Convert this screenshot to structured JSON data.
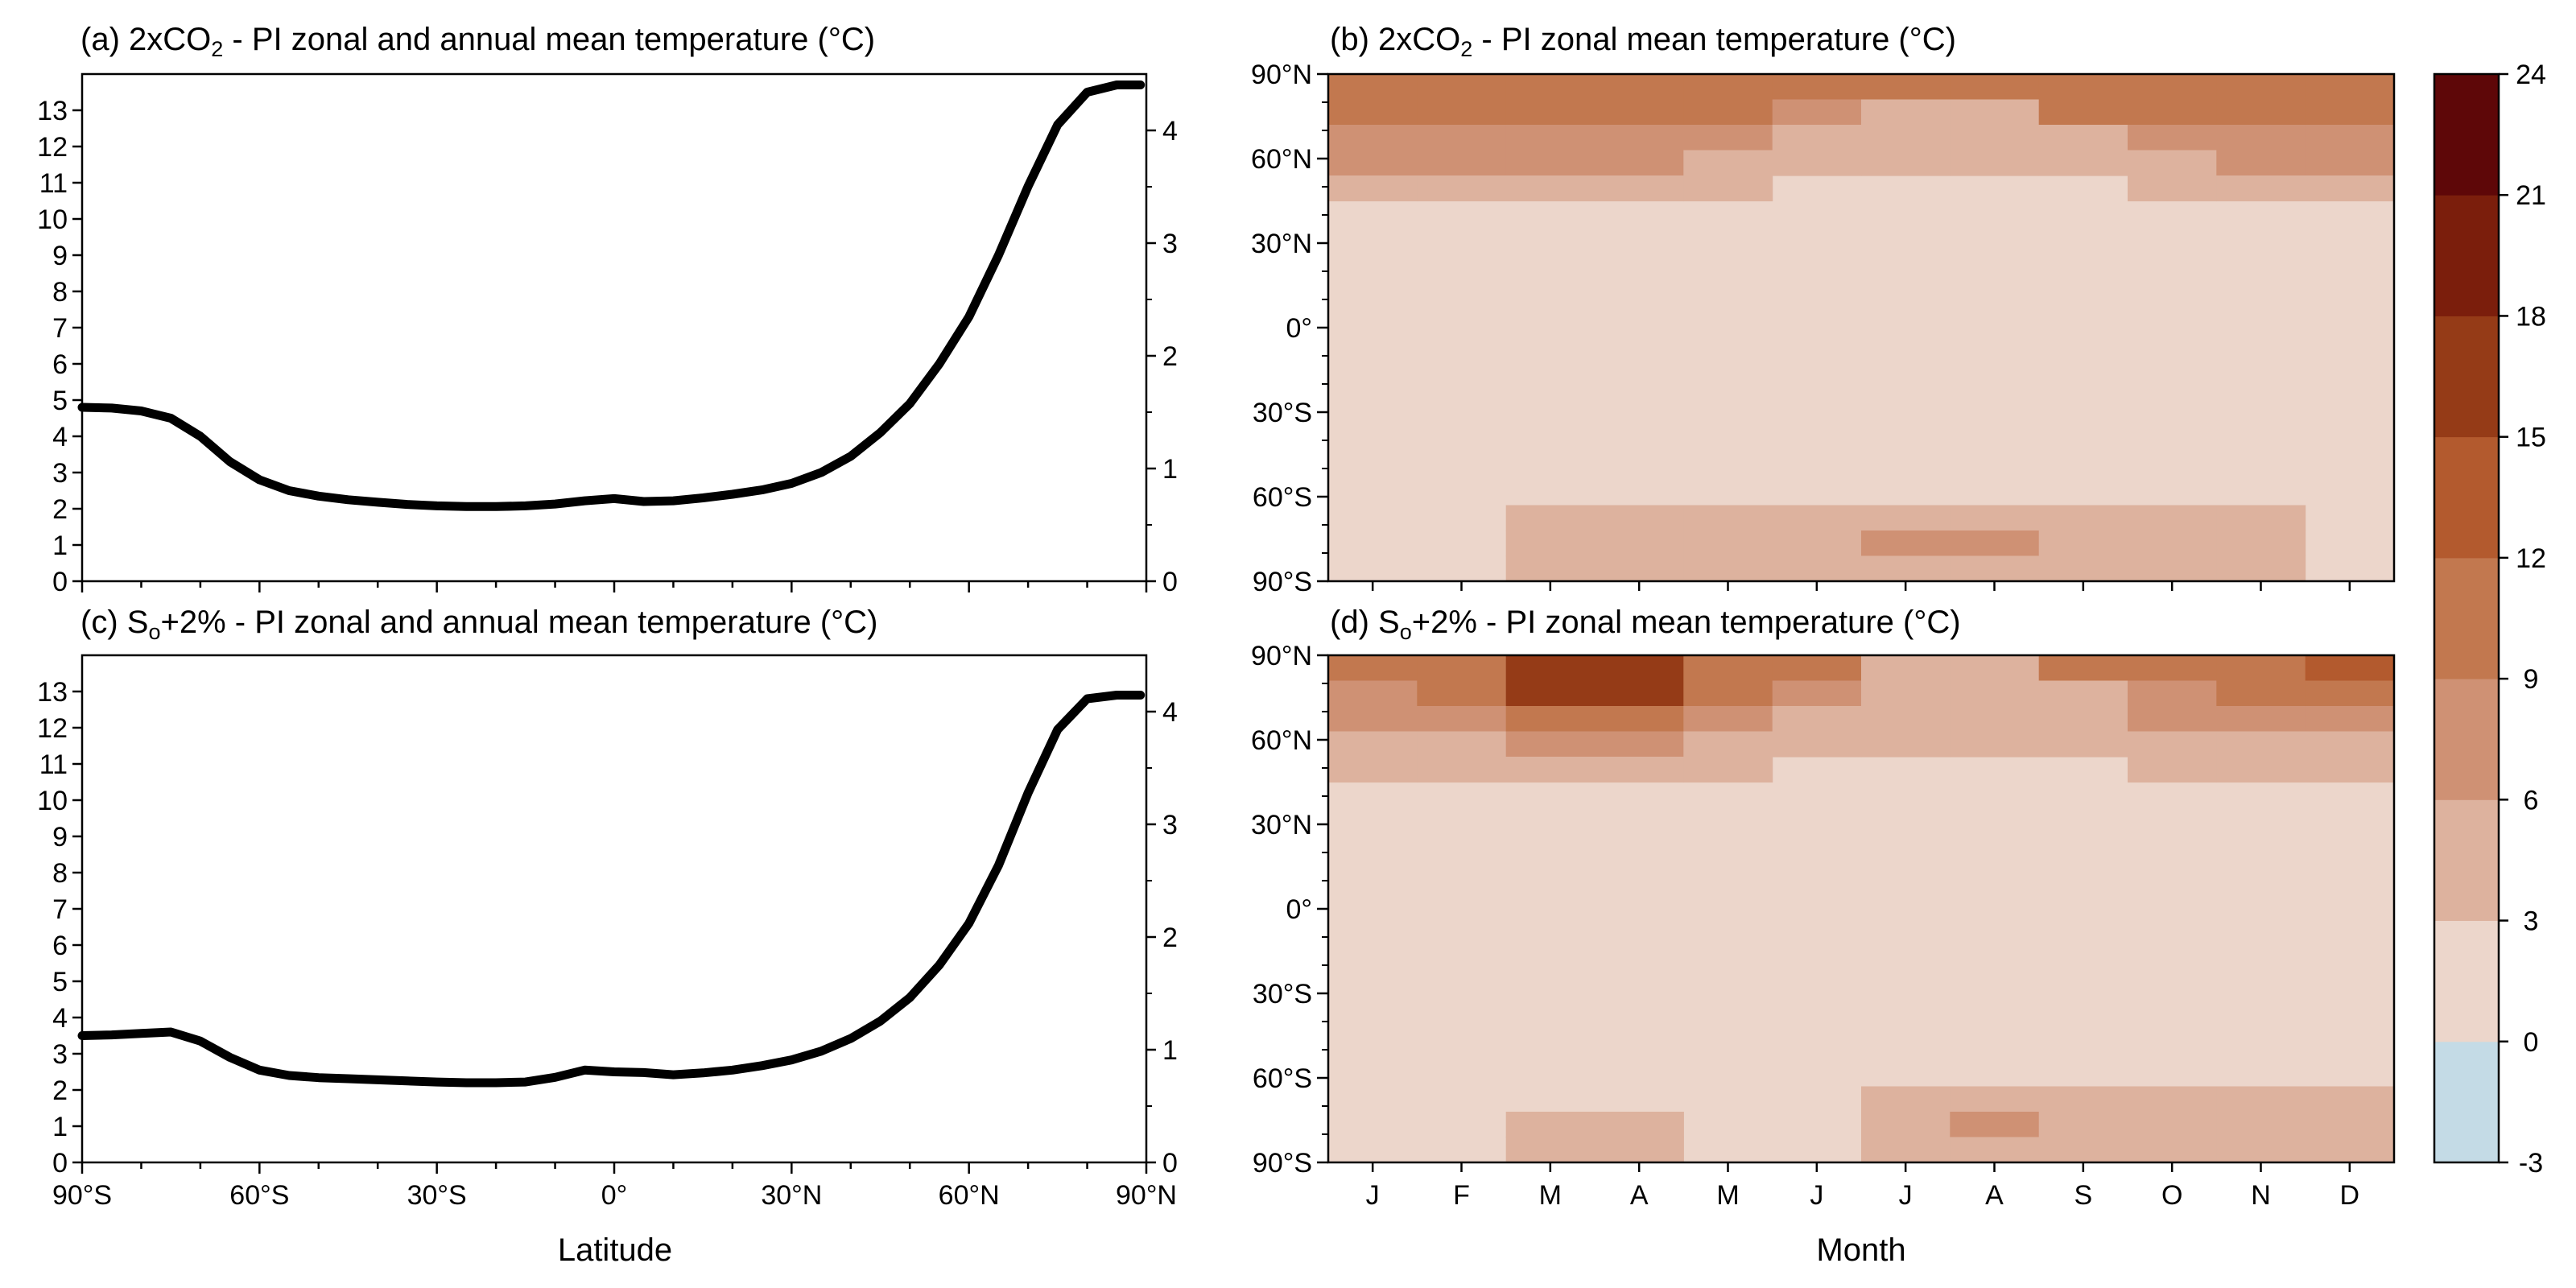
{
  "chart_data": [
    {
      "panel": "a",
      "type": "line",
      "title_prefix": "(a) 2xCO",
      "title_sub": "2",
      "title_suffix": " - PI zonal and annual mean temperature (°C)",
      "xlabel": "",
      "xlim": [
        -90,
        90
      ],
      "ylim_left": [
        0,
        14
      ],
      "ylim_right": [
        0,
        4.5
      ],
      "yticks_left": [
        "0",
        "1",
        "2",
        "3",
        "4",
        "5",
        "6",
        "7",
        "8",
        "9",
        "10",
        "11",
        "12",
        "13"
      ],
      "yticks_right": [
        "0",
        "1",
        "2",
        "3",
        "4"
      ],
      "x": [
        -90,
        -85,
        -80,
        -75,
        -70,
        -65,
        -60,
        -55,
        -50,
        -45,
        -40,
        -35,
        -30,
        -25,
        -20,
        -15,
        -10,
        -5,
        0,
        5,
        10,
        15,
        20,
        25,
        30,
        35,
        40,
        45,
        50,
        55,
        60,
        65,
        70,
        75,
        80,
        85,
        89
      ],
      "y": [
        4.8,
        4.78,
        4.7,
        4.5,
        4.0,
        3.3,
        2.8,
        2.5,
        2.35,
        2.25,
        2.18,
        2.12,
        2.08,
        2.06,
        2.06,
        2.08,
        2.13,
        2.22,
        2.28,
        2.2,
        2.22,
        2.3,
        2.4,
        2.52,
        2.7,
        3.0,
        3.45,
        4.1,
        4.9,
        6.0,
        7.3,
        9.0,
        10.9,
        12.6,
        13.5,
        13.7,
        13.7
      ]
    },
    {
      "panel": "b",
      "type": "heatmap",
      "title_prefix": "(b) 2xCO",
      "title_sub": "2",
      "title_suffix": " - PI zonal mean temperature (°C)",
      "xlabel": "",
      "months": [
        "J",
        "F",
        "M",
        "A",
        "M",
        "J",
        "J",
        "A",
        "S",
        "O",
        "N",
        "D"
      ],
      "ylim": [
        -90,
        90
      ],
      "field": [
        [
          4,
          4,
          4,
          4,
          4,
          4,
          4,
          4,
          4,
          4,
          4,
          4
        ],
        [
          4,
          4,
          4,
          4,
          4,
          3,
          2,
          2,
          4,
          4,
          4,
          4
        ],
        [
          3,
          3,
          3,
          3,
          3,
          2,
          2,
          2,
          2,
          3,
          3,
          3
        ],
        [
          3,
          3,
          3,
          3,
          2,
          2,
          2,
          2,
          2,
          2,
          3,
          3
        ],
        [
          2,
          2,
          2,
          2,
          2,
          1,
          1,
          1,
          1,
          2,
          2,
          2
        ],
        [
          1,
          1,
          1,
          1,
          1,
          1,
          1,
          1,
          1,
          1,
          1,
          1
        ],
        [
          1,
          1,
          1,
          1,
          1,
          1,
          1,
          1,
          1,
          1,
          1,
          1
        ],
        [
          1,
          1,
          1,
          1,
          1,
          1,
          1,
          1,
          1,
          1,
          1,
          1
        ],
        [
          1,
          1,
          1,
          1,
          1,
          1,
          1,
          1,
          1,
          1,
          1,
          1
        ],
        [
          1,
          1,
          1,
          1,
          1,
          1,
          1,
          1,
          1,
          1,
          1,
          1
        ],
        [
          1,
          1,
          1,
          1,
          1,
          1,
          1,
          1,
          1,
          1,
          1,
          1
        ],
        [
          1,
          1,
          1,
          1,
          1,
          1,
          1,
          1,
          1,
          1,
          1,
          1
        ],
        [
          1,
          1,
          1,
          1,
          1,
          1,
          1,
          1,
          1,
          1,
          1,
          1
        ],
        [
          1,
          1,
          1,
          1,
          1,
          1,
          1,
          1,
          1,
          1,
          1,
          1
        ],
        [
          1,
          1,
          1,
          1,
          1,
          1,
          1,
          1,
          1,
          1,
          1,
          1
        ],
        [
          1,
          1,
          1,
          1,
          1,
          1,
          1,
          1,
          1,
          1,
          1,
          1
        ],
        [
          1,
          1,
          1,
          1,
          1,
          1,
          1,
          1,
          1,
          1,
          1,
          1
        ],
        [
          1,
          1,
          2,
          2,
          2,
          2,
          2,
          2,
          2,
          2,
          2,
          1
        ],
        [
          1,
          1,
          2,
          2,
          2,
          2,
          3,
          3,
          2,
          2,
          2,
          1
        ],
        [
          1,
          1,
          2,
          2,
          2,
          2,
          2,
          2,
          2,
          2,
          2,
          1
        ]
      ]
    },
    {
      "panel": "c",
      "type": "line",
      "title_prefix": "(c) S",
      "title_sub": "o",
      "title_suffix": "+2% - PI zonal and annual mean temperature (°C)",
      "xlabel": "Latitude",
      "xlim": [
        -90,
        90
      ],
      "xticks": [
        "90°S",
        "60°S",
        "30°S",
        "0°",
        "30°N",
        "60°N",
        "90°N"
      ],
      "ylim_left": [
        0,
        14
      ],
      "ylim_right": [
        0,
        4.5
      ],
      "yticks_left": [
        "0",
        "1",
        "2",
        "3",
        "4",
        "5",
        "6",
        "7",
        "8",
        "9",
        "10",
        "11",
        "12",
        "13"
      ],
      "yticks_right": [
        "0",
        "1",
        "2",
        "3",
        "4"
      ],
      "x": [
        -90,
        -85,
        -80,
        -75,
        -70,
        -65,
        -60,
        -55,
        -50,
        -45,
        -40,
        -35,
        -30,
        -25,
        -20,
        -15,
        -10,
        -5,
        0,
        5,
        10,
        15,
        20,
        25,
        30,
        35,
        40,
        45,
        50,
        55,
        60,
        65,
        70,
        75,
        80,
        85,
        89
      ],
      "y": [
        3.5,
        3.52,
        3.56,
        3.6,
        3.35,
        2.9,
        2.55,
        2.4,
        2.34,
        2.31,
        2.28,
        2.25,
        2.22,
        2.2,
        2.2,
        2.22,
        2.35,
        2.55,
        2.5,
        2.48,
        2.42,
        2.47,
        2.55,
        2.67,
        2.83,
        3.07,
        3.42,
        3.9,
        4.55,
        5.45,
        6.6,
        8.2,
        10.2,
        11.95,
        12.8,
        12.9,
        12.9
      ]
    },
    {
      "panel": "d",
      "type": "heatmap",
      "title_prefix": "(d) S",
      "title_sub": "o",
      "title_suffix": "+2% - PI zonal mean temperature (°C)",
      "xlabel": "Month",
      "months": [
        "J",
        "F",
        "M",
        "A",
        "M",
        "J",
        "J",
        "A",
        "S",
        "O",
        "N",
        "D"
      ],
      "ylim": [
        -90,
        90
      ],
      "yticks": [
        "90°N",
        "60°N",
        "30°N",
        "0°",
        "30°S",
        "60°S",
        "90°S"
      ],
      "field": [
        [
          4,
          4,
          6,
          6,
          4,
          4,
          2,
          2,
          4,
          4,
          4,
          5
        ],
        [
          3,
          4,
          6,
          6,
          4,
          3,
          2,
          2,
          2,
          3,
          4,
          4
        ],
        [
          3,
          3,
          4,
          4,
          3,
          2,
          2,
          2,
          2,
          3,
          3,
          3
        ],
        [
          2,
          2,
          3,
          3,
          2,
          2,
          2,
          2,
          2,
          2,
          2,
          2
        ],
        [
          2,
          2,
          2,
          2,
          2,
          1,
          1,
          1,
          1,
          2,
          2,
          2
        ],
        [
          1,
          1,
          1,
          1,
          1,
          1,
          1,
          1,
          1,
          1,
          1,
          1
        ],
        [
          1,
          1,
          1,
          1,
          1,
          1,
          1,
          1,
          1,
          1,
          1,
          1
        ],
        [
          1,
          1,
          1,
          1,
          1,
          1,
          1,
          1,
          1,
          1,
          1,
          1
        ],
        [
          1,
          1,
          1,
          1,
          1,
          1,
          1,
          1,
          1,
          1,
          1,
          1
        ],
        [
          1,
          1,
          1,
          1,
          1,
          1,
          1,
          1,
          1,
          1,
          1,
          1
        ],
        [
          1,
          1,
          1,
          1,
          1,
          1,
          1,
          1,
          1,
          1,
          1,
          1
        ],
        [
          1,
          1,
          1,
          1,
          1,
          1,
          1,
          1,
          1,
          1,
          1,
          1
        ],
        [
          1,
          1,
          1,
          1,
          1,
          1,
          1,
          1,
          1,
          1,
          1,
          1
        ],
        [
          1,
          1,
          1,
          1,
          1,
          1,
          1,
          1,
          1,
          1,
          1,
          1
        ],
        [
          1,
          1,
          1,
          1,
          1,
          1,
          1,
          1,
          1,
          1,
          1,
          1
        ],
        [
          1,
          1,
          1,
          1,
          1,
          1,
          1,
          1,
          1,
          1,
          1,
          1
        ],
        [
          1,
          1,
          1,
          1,
          1,
          1,
          1,
          1,
          1,
          1,
          1,
          1
        ],
        [
          1,
          1,
          1,
          1,
          1,
          1,
          2,
          2,
          2,
          2,
          2,
          2
        ],
        [
          1,
          1,
          2,
          2,
          1,
          1,
          2,
          3,
          2,
          2,
          2,
          2
        ],
        [
          1,
          1,
          2,
          2,
          1,
          1,
          2,
          2,
          2,
          2,
          2,
          2
        ]
      ]
    }
  ],
  "colorbar": {
    "levels": [
      "-3",
      "0",
      "3",
      "6",
      "9",
      "12",
      "15",
      "18",
      "21",
      "24"
    ],
    "colors": [
      "#c4dbe6",
      "#ecd6cb",
      "#ddb29e",
      "#cf9174",
      "#c2784f",
      "#b35a2e",
      "#953b17",
      "#7b1e0c",
      "#5e0708"
    ]
  },
  "line_color": "#000000"
}
